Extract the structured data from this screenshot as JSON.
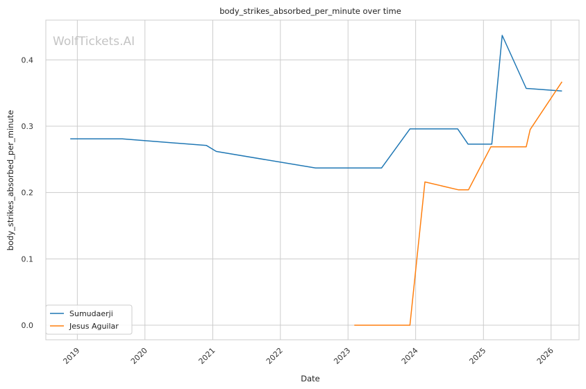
{
  "chart_data": {
    "type": "line",
    "title": "body_strikes_absorbed_per_minute over time",
    "xlabel": "Date",
    "ylabel": "body_strikes_absorbed_per_minute",
    "watermark": "WolfTickets.AI",
    "xlim": [
      "2018-07-15",
      "2026-06-01"
    ],
    "ylim": [
      -0.022,
      0.46
    ],
    "x_ticks": [
      "2019",
      "2020",
      "2021",
      "2022",
      "2023",
      "2024",
      "2025",
      "2026"
    ],
    "y_ticks": [
      "0.0",
      "0.1",
      "0.2",
      "0.3",
      "0.4"
    ],
    "grid": true,
    "legend_position": "lower-left",
    "series": [
      {
        "name": "Sumudaerji",
        "color": "#1f77b4",
        "points": [
          {
            "x": "2018-11-24",
            "y": 0.281
          },
          {
            "x": "2019-09-01",
            "y": 0.281
          },
          {
            "x": "2020-11-28",
            "y": 0.271
          },
          {
            "x": "2021-01-20",
            "y": 0.262
          },
          {
            "x": "2022-07-10",
            "y": 0.237
          },
          {
            "x": "2023-07-01",
            "y": 0.237
          },
          {
            "x": "2023-12-01",
            "y": 0.296
          },
          {
            "x": "2024-08-15",
            "y": 0.296
          },
          {
            "x": "2024-10-10",
            "y": 0.273
          },
          {
            "x": "2025-02-15",
            "y": 0.273
          },
          {
            "x": "2025-04-12",
            "y": 0.437
          },
          {
            "x": "2025-08-20",
            "y": 0.357
          },
          {
            "x": "2026-03-01",
            "y": 0.353
          }
        ]
      },
      {
        "name": "Jesus Aguilar",
        "color": "#ff7f0e",
        "points": [
          {
            "x": "2023-02-04",
            "y": 0.0
          },
          {
            "x": "2023-12-01",
            "y": 0.0
          },
          {
            "x": "2024-02-20",
            "y": 0.216
          },
          {
            "x": "2024-08-20",
            "y": 0.204
          },
          {
            "x": "2024-10-12",
            "y": 0.204
          },
          {
            "x": "2025-02-10",
            "y": 0.269
          },
          {
            "x": "2025-08-20",
            "y": 0.269
          },
          {
            "x": "2025-09-10",
            "y": 0.295
          },
          {
            "x": "2026-03-01",
            "y": 0.367
          }
        ]
      }
    ]
  }
}
